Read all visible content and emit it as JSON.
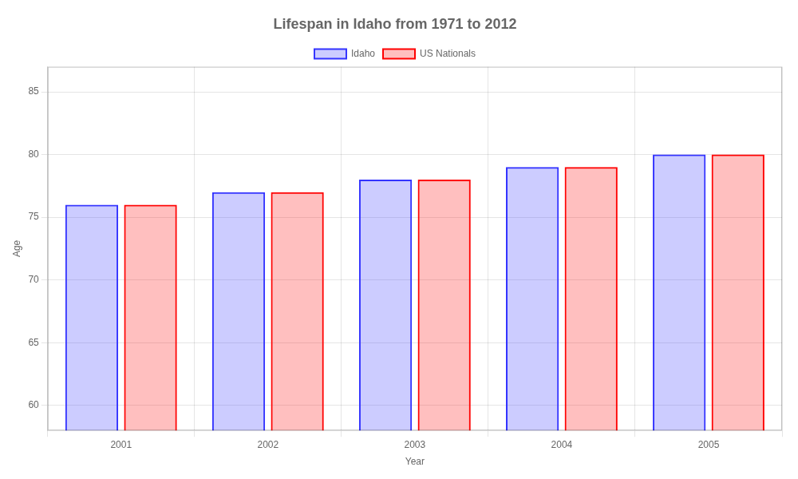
{
  "chart_data": {
    "type": "bar",
    "title": "Lifespan in Idaho from 1971 to 2012",
    "x_label": "Year",
    "y_label": "Age",
    "categories": [
      "2001",
      "2002",
      "2003",
      "2004",
      "2005"
    ],
    "series": [
      {
        "name": "Idaho",
        "color": "#3333ff",
        "values": [
          76,
          77,
          78,
          79,
          80
        ]
      },
      {
        "name": "US Nationals",
        "color": "#ff0000",
        "values": [
          76,
          77,
          78,
          79,
          80
        ]
      }
    ],
    "ylim": [
      58,
      87
    ],
    "yticks": [
      60,
      65,
      70,
      75,
      80,
      85
    ],
    "grid": true,
    "legend": "top"
  }
}
